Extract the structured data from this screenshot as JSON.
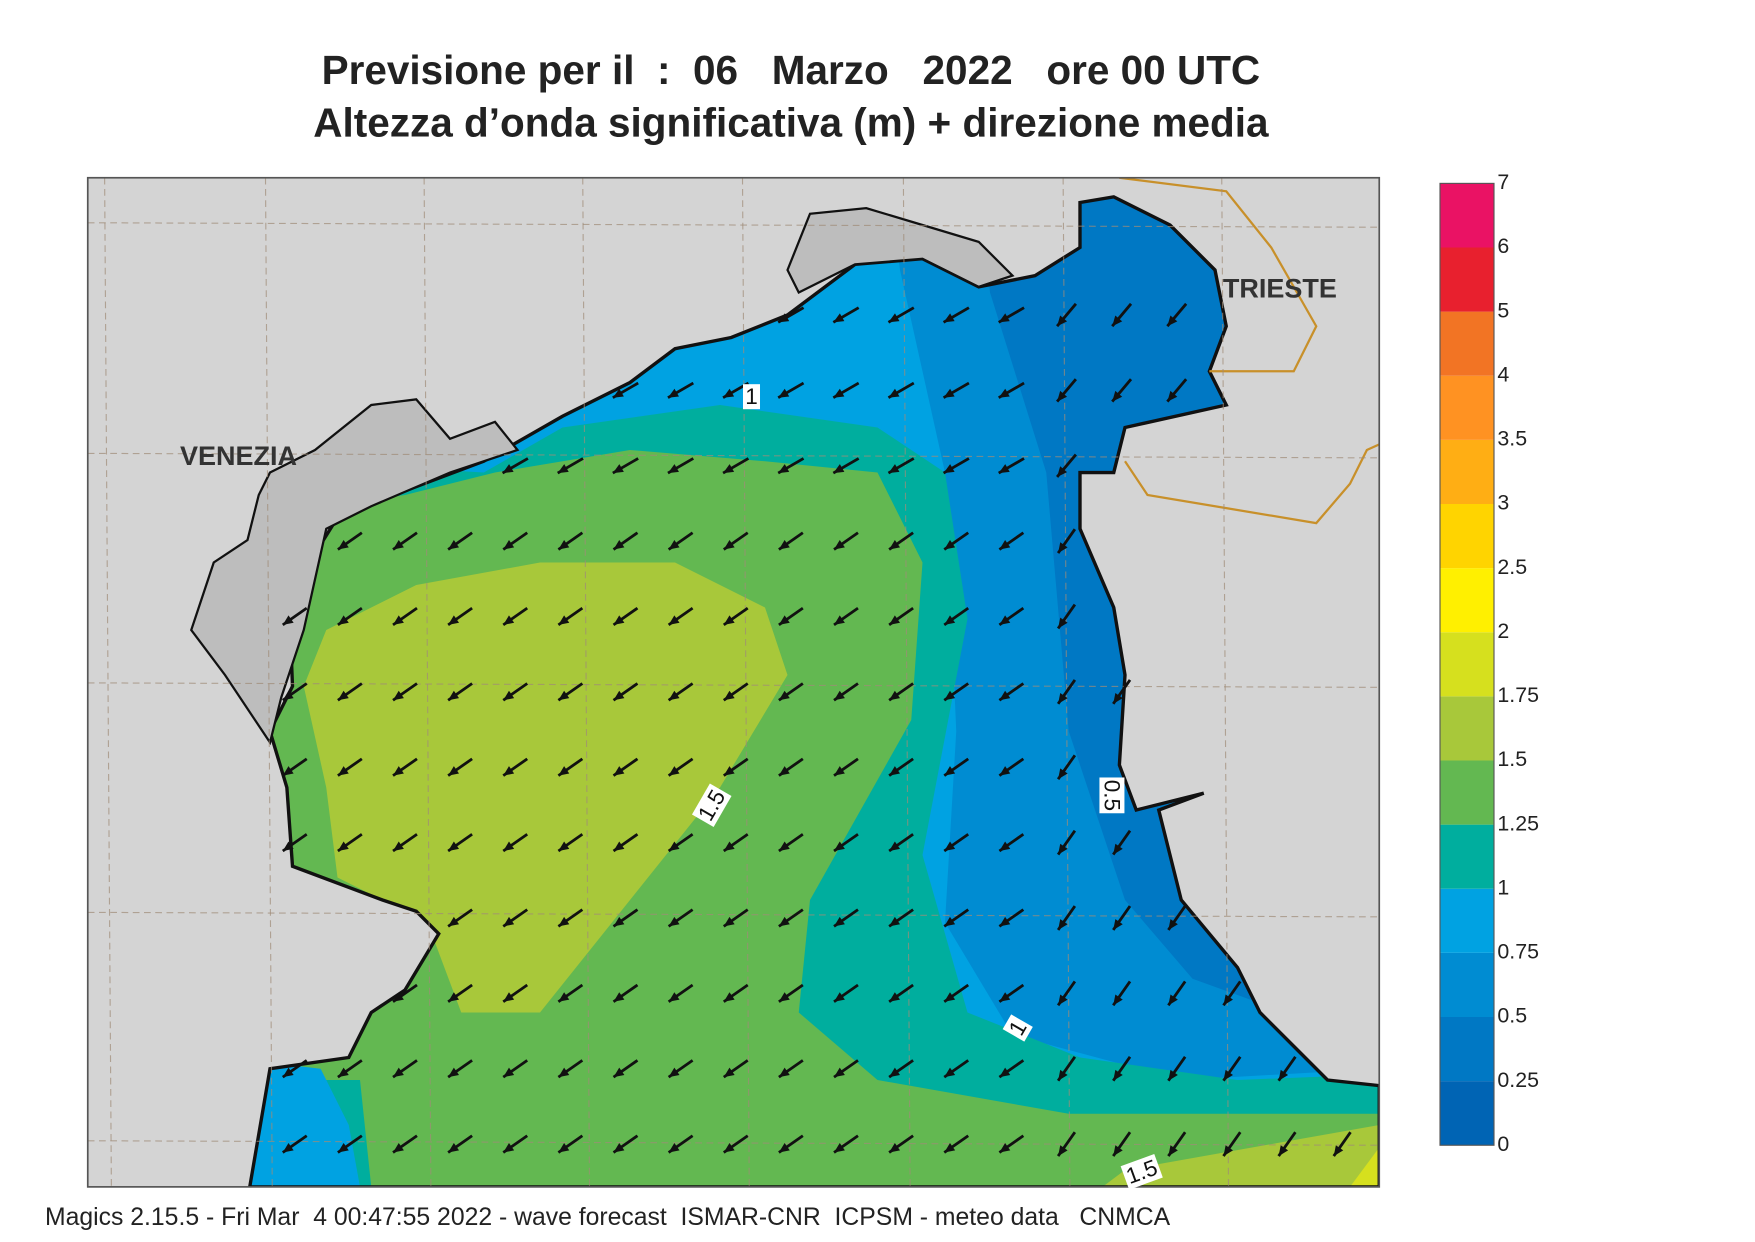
{
  "title": {
    "line1": "Previsione per il  :  06   Marzo   2022   ore 00 UTC",
    "line2": "Altezza d’onda significativa (m) + direzione media"
  },
  "legend": {
    "labels": [
      "0",
      "0.25",
      "0.5",
      "0.75",
      "1",
      "1.25",
      "1.5",
      "1.75",
      "2",
      "2.5",
      "3",
      "3.5",
      "4",
      "5",
      "6",
      "7"
    ],
    "colors": [
      "#0064b4",
      "#0078c4",
      "#008cd2",
      "#00a2e2",
      "#00ae9e",
      "#63b851",
      "#a8c83a",
      "#d6e01e",
      "#fff000",
      "#ffd400",
      "#ffae14",
      "#ff9222",
      "#f27424",
      "#e8202e",
      "#ea1264"
    ]
  },
  "places": [
    "VENEZIA",
    "TRIESTE"
  ],
  "contour_labels": [
    "1",
    "1.5",
    "0.5",
    "1",
    "1.5"
  ],
  "footer": "Magics 2.15.5 - Fri Mar  4 00:47:55 2022 - wave forecast  ISMAR-CNR  ICPSM - meteo data   CNMCA"
}
